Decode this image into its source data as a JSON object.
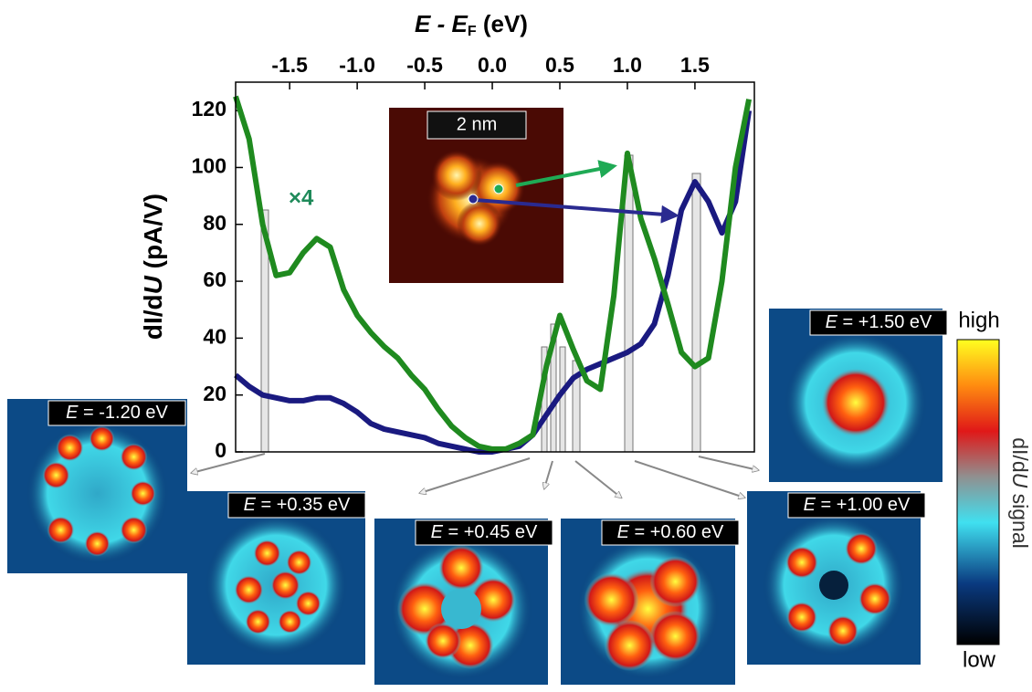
{
  "chart_data": {
    "type": "line",
    "x_label": [
      "E",
      "- E",
      "F",
      "(eV)"
    ],
    "y_label": [
      "dI/d",
      "U",
      "(pA/V)"
    ],
    "annotation": "×4",
    "scale_bar": "2 nm",
    "xlim": [
      -1.9,
      1.94
    ],
    "ylim": [
      0,
      130
    ],
    "xticks": [
      -1.5,
      {
        "value": -1,
        "label": "-1.0"
      },
      -0.5,
      {
        "value": 0,
        "label": "0.0"
      },
      0.5,
      {
        "value": 1,
        "label": "1.0"
      },
      1.5
    ],
    "yticks": [
      0,
      20,
      40,
      60,
      80,
      100,
      120
    ],
    "x": [
      -1.9,
      -1.8,
      -1.7,
      -1.6,
      -1.5,
      -1.4,
      -1.3,
      -1.2,
      -1.1,
      -1.0,
      -0.9,
      -0.8,
      -0.7,
      -0.6,
      -0.5,
      -0.4,
      -0.3,
      -0.2,
      -0.1,
      0.0,
      0.1,
      0.2,
      0.3,
      0.4,
      0.5,
      0.6,
      0.7,
      0.8,
      0.9,
      1.0,
      1.1,
      1.2,
      1.3,
      1.4,
      1.5,
      1.6,
      1.7,
      1.8,
      1.9
    ],
    "series": [
      {
        "color": "#1a1a80",
        "values": [
          27,
          23,
          20,
          19,
          18,
          18,
          19,
          19,
          17,
          14,
          10,
          8,
          7,
          6,
          5,
          3,
          2,
          1,
          0,
          0,
          1,
          2,
          6,
          13,
          20,
          26,
          29,
          31,
          33,
          35,
          38,
          45,
          62,
          85,
          95,
          88,
          77,
          88,
          120
        ]
      },
      {
        "color": "#1f8a1f",
        "values": [
          125,
          110,
          80,
          62,
          63,
          70,
          75,
          72,
          57,
          48,
          42,
          37,
          33,
          27,
          22,
          15,
          9,
          5,
          2,
          1,
          1,
          3,
          6,
          30,
          48,
          36,
          25,
          22,
          55,
          105,
          82,
          68,
          52,
          35,
          30,
          33,
          60,
          100,
          124
        ]
      }
    ]
  },
  "maps": [
    {
      "var": "E",
      "text": "= -1.20 eV"
    },
    {
      "var": "E",
      "text": "= +0.35 eV"
    },
    {
      "var": "E",
      "text": "= +0.45 eV"
    },
    {
      "var": "E",
      "text": "= +0.60 eV"
    },
    {
      "var": "E",
      "text": "= +1.00 eV"
    },
    {
      "var": "E",
      "text": "= +1.50 eV"
    }
  ],
  "colorbar": {
    "high": "high",
    "low": "low",
    "label": [
      "dI/d",
      "U",
      "signal"
    ]
  }
}
